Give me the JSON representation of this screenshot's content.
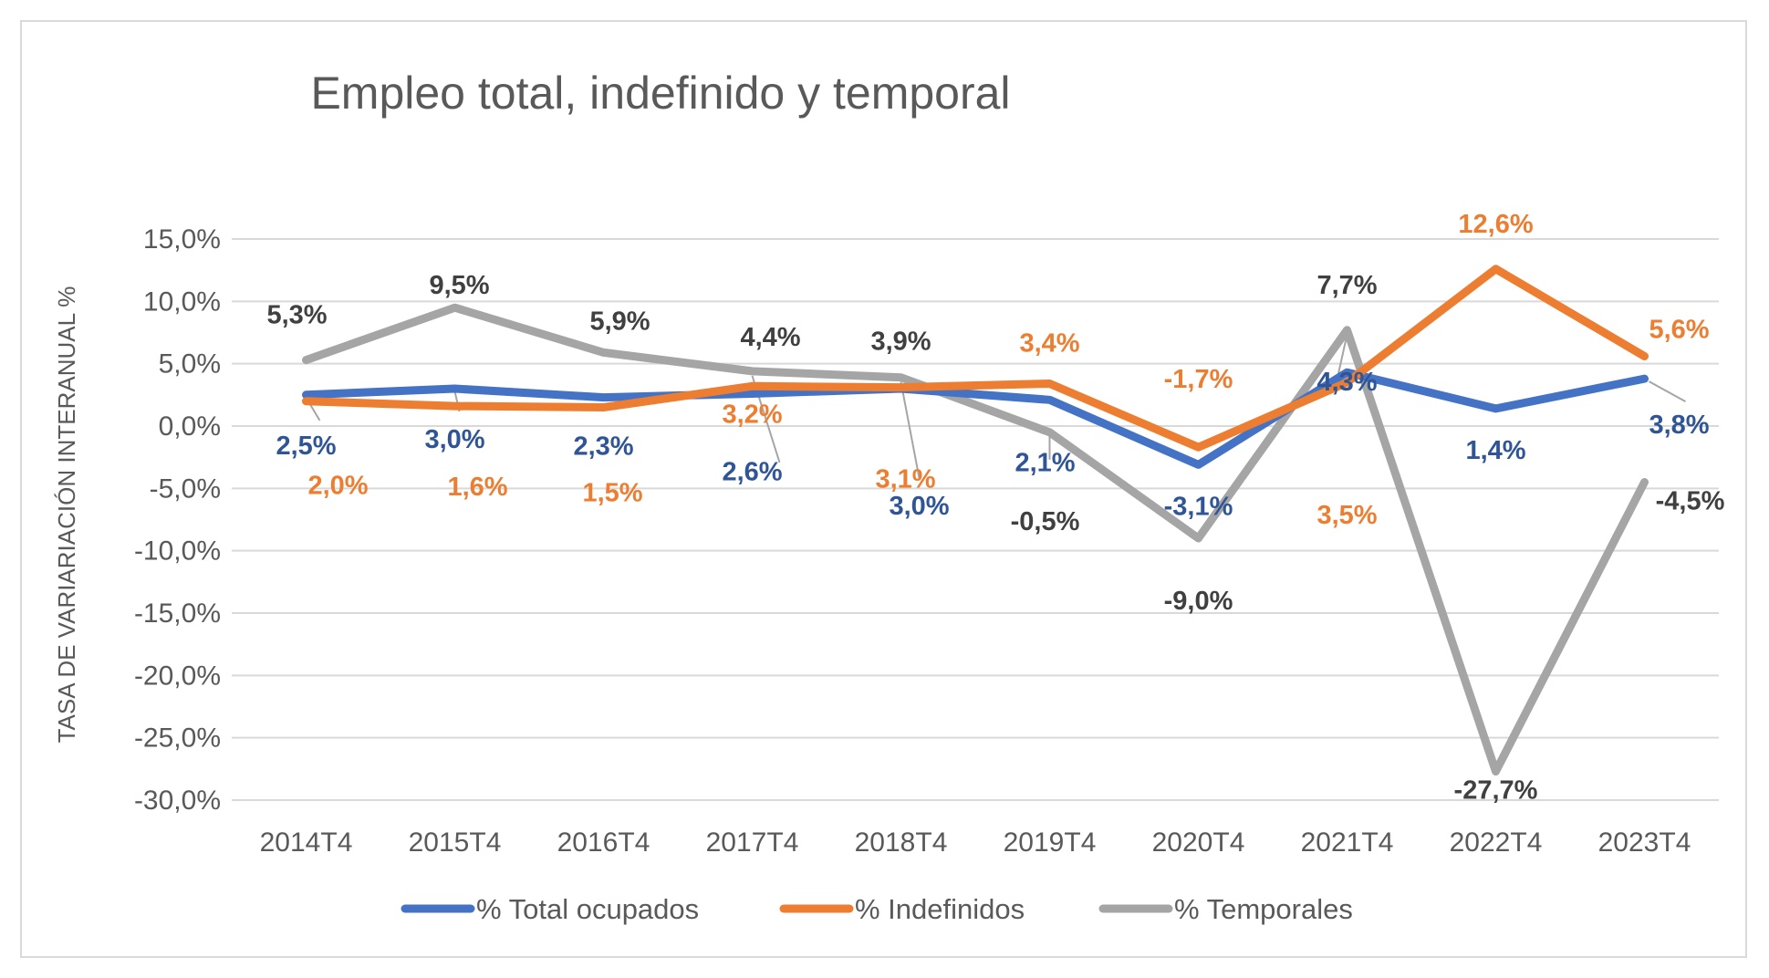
{
  "chart_data": {
    "type": "line",
    "title": "Empleo total, indefinido y temporal",
    "xlabel": "",
    "ylabel": "TASA DE VARIARIACIÓN INTERANUAL %",
    "categories": [
      "2014T4",
      "2015T4",
      "2016T4",
      "2017T4",
      "2018T4",
      "2019T4",
      "2020T4",
      "2021T4",
      "2022T4",
      "2023T4"
    ],
    "ylim": [
      -30,
      15
    ],
    "yticks": [
      15,
      10,
      5,
      0,
      -5,
      -10,
      -15,
      -20,
      -25,
      -30
    ],
    "ytick_labels": [
      "15,0%",
      "10,0%",
      "5,0%",
      "0,0%",
      "-5,0%",
      "-10,0%",
      "-15,0%",
      "-20,0%",
      "-25,0%",
      "-30,0%"
    ],
    "grid": true,
    "legend_position": "bottom",
    "series": [
      {
        "name": "% Total ocupados",
        "color": "#4472C4",
        "label_color": "#2F5597",
        "values": [
          2.5,
          3.0,
          2.3,
          2.6,
          3.0,
          2.1,
          -3.1,
          4.3,
          1.4,
          3.8
        ],
        "labels": [
          "2,5%",
          "3,0%",
          "2,3%",
          "2,6%",
          "3,0%",
          "2,1%",
          "-3,1%",
          "4,3%",
          "1,4%",
          "3,8%"
        ]
      },
      {
        "name": "% Indefinidos",
        "color": "#ED7D31",
        "label_color": "#ED7D31",
        "values": [
          2.0,
          1.6,
          1.5,
          3.2,
          3.1,
          3.4,
          -1.7,
          3.5,
          12.6,
          5.6
        ],
        "labels": [
          "2,0%",
          "1,6%",
          "1,5%",
          "3,2%",
          "3,1%",
          "3,4%",
          "-1,7%",
          "3,5%",
          "12,6%",
          "5,6%"
        ]
      },
      {
        "name": "% Temporales",
        "color": "#A5A5A5",
        "label_color": "#404040",
        "values": [
          5.3,
          9.5,
          5.9,
          4.4,
          3.9,
          -0.5,
          -9.0,
          7.7,
          -27.7,
          -4.5
        ],
        "labels": [
          "5,3%",
          "9,5%",
          "5,9%",
          "4,4%",
          "3,9%",
          "-0,5%",
          "-9,0%",
          "7,7%",
          "-27,7%",
          "-4,5%"
        ]
      }
    ]
  }
}
